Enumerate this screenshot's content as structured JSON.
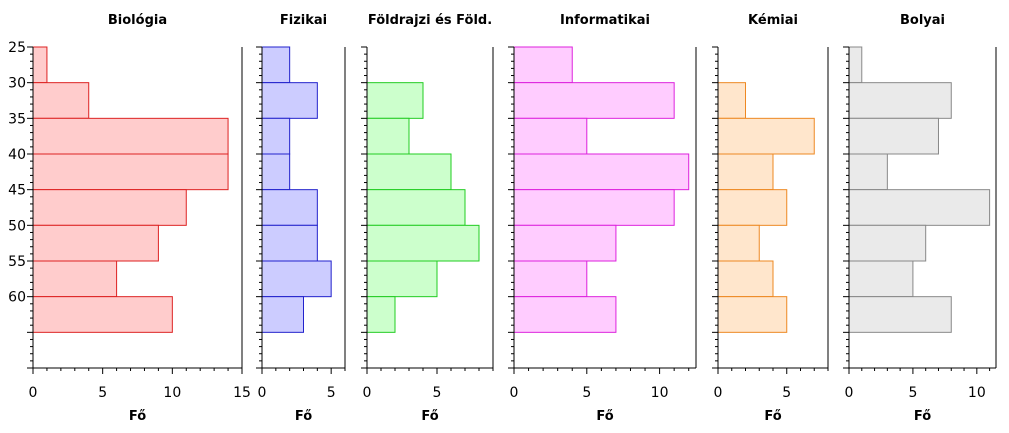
{
  "chart_data": {
    "type": "bar",
    "orientation": "horizontal",
    "y_ticks": [
      25,
      30,
      35,
      40,
      45,
      50,
      55,
      60
    ],
    "y_range": [
      25,
      70
    ],
    "bin_width": 5,
    "bin_starts": [
      25,
      30,
      35,
      40,
      45,
      50,
      55,
      60
    ],
    "panels": [
      {
        "title": "Biológia",
        "xlabel": "Fő",
        "xlim": [
          0,
          15
        ],
        "xticks": [
          0,
          5,
          10,
          15
        ],
        "values": [
          1,
          4,
          14,
          14,
          11,
          9,
          6,
          10
        ],
        "fill": "#ffcccc",
        "stroke": "#dd2222"
      },
      {
        "title": "Fizikai",
        "xlabel": "Fő",
        "xlim": [
          0,
          6
        ],
        "xticks": [
          0,
          5
        ],
        "values": [
          2,
          4,
          2,
          2,
          4,
          4,
          5,
          3
        ],
        "fill": "#ccccff",
        "stroke": "#2222cc"
      },
      {
        "title": "Földrajzi és Föld.",
        "xlabel": "Fő",
        "xlim": [
          0,
          9
        ],
        "xticks": [
          0,
          5
        ],
        "values": [
          0,
          4,
          3,
          6,
          7,
          8,
          5,
          2
        ],
        "fill": "#ccffcc",
        "stroke": "#22cc22"
      },
      {
        "title": "Informatikai",
        "xlabel": "Fő",
        "xlim": [
          0,
          12.5
        ],
        "xticks": [
          0,
          5,
          10
        ],
        "values": [
          4,
          11,
          5,
          12,
          11,
          7,
          5,
          7
        ],
        "fill": "#ffccff",
        "stroke": "#dd22dd"
      },
      {
        "title": "Kémiai",
        "xlabel": "Fő",
        "xlim": [
          0,
          8
        ],
        "xticks": [
          0,
          5
        ],
        "values": [
          0,
          2,
          7,
          4,
          5,
          3,
          4,
          5
        ],
        "fill": "#ffe6cc",
        "stroke": "#ee8822"
      },
      {
        "title": "Bolyai",
        "xlabel": "Fő",
        "xlim": [
          0,
          11.5
        ],
        "xticks": [
          0,
          5,
          10
        ],
        "values": [
          1,
          8,
          7,
          3,
          11,
          6,
          5,
          8
        ],
        "fill": "#eaeaea",
        "stroke": "#888888"
      }
    ]
  }
}
